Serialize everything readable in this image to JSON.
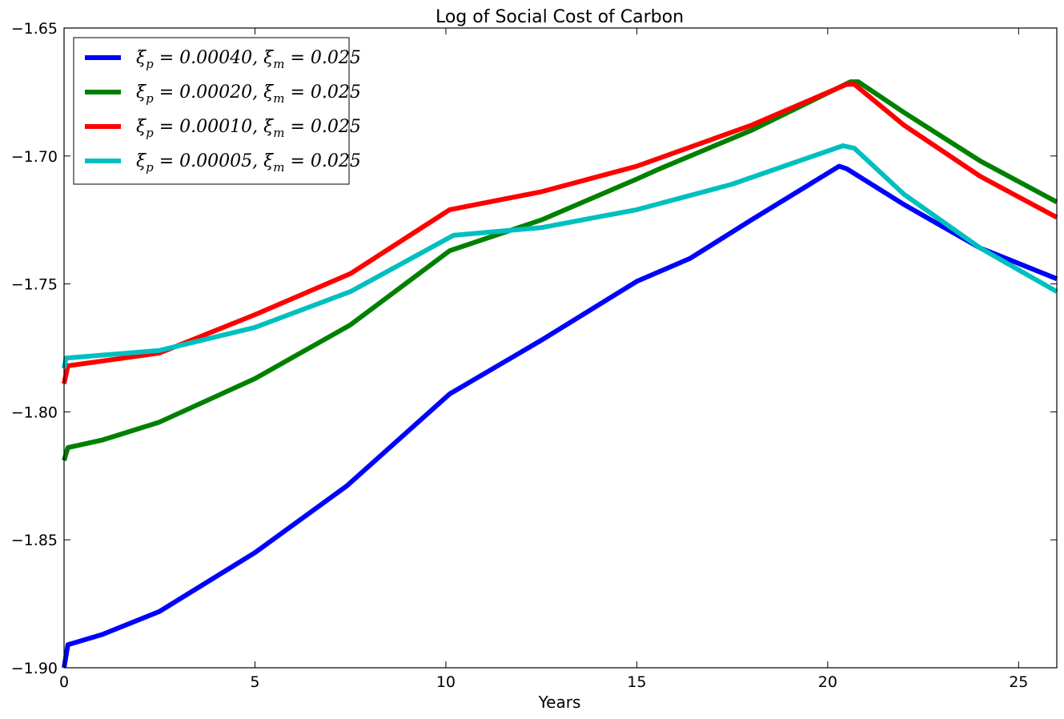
{
  "chart_data": {
    "type": "line",
    "title": "Log of Social Cost of Carbon",
    "xlabel": "Years",
    "ylabel": "",
    "xlim": [
      0,
      26
    ],
    "ylim": [
      -1.9,
      -1.65
    ],
    "xticks": [
      0,
      5,
      10,
      15,
      20,
      25
    ],
    "xtick_labels": [
      "0",
      "5",
      "10",
      "15",
      "20",
      "25"
    ],
    "yticks": [
      -1.9,
      -1.85,
      -1.8,
      -1.75,
      -1.7,
      -1.65
    ],
    "ytick_labels": [
      "−1.90",
      "−1.85",
      "−1.80",
      "−1.75",
      "−1.70",
      "−1.65"
    ],
    "grid": false,
    "legend_position": "top-left",
    "series": [
      {
        "name": "ξₚ = 0.00040, ξₘ = 0.025",
        "color": "#0000ff",
        "x": [
          0,
          0.1,
          1,
          2.5,
          5,
          7.4,
          10.1,
          12.5,
          15,
          16.4,
          18,
          20.3,
          20.5,
          22,
          24,
          26
        ],
        "y": [
          -1.9,
          -1.891,
          -1.887,
          -1.878,
          -1.855,
          -1.829,
          -1.793,
          -1.772,
          -1.749,
          -1.74,
          -1.725,
          -1.704,
          -1.705,
          -1.719,
          -1.736,
          -1.748
        ]
      },
      {
        "name": "ξₚ = 0.00020, ξₘ = 0.025",
        "color": "#008000",
        "x": [
          0,
          0.1,
          1,
          2.5,
          5,
          7.5,
          10.1,
          12.5,
          15,
          15.6,
          18,
          20.6,
          20.8,
          22,
          24,
          26
        ],
        "y": [
          -1.819,
          -1.814,
          -1.811,
          -1.804,
          -1.787,
          -1.766,
          -1.737,
          -1.725,
          -1.709,
          -1.705,
          -1.69,
          -1.671,
          -1.671,
          -1.683,
          -1.702,
          -1.718
        ]
      },
      {
        "name": "ξₚ = 0.00010, ξₘ = 0.025",
        "color": "#ff0000",
        "x": [
          0,
          0.1,
          2.5,
          5,
          7.5,
          10.1,
          12.5,
          15,
          18,
          20.5,
          20.7,
          22,
          24,
          26
        ],
        "y": [
          -1.789,
          -1.782,
          -1.777,
          -1.762,
          -1.746,
          -1.721,
          -1.714,
          -1.704,
          -1.688,
          -1.672,
          -1.672,
          -1.688,
          -1.708,
          -1.724
        ]
      },
      {
        "name": "ξₚ = 0.00005, ξₘ = 0.025",
        "color": "#00bfbf",
        "x": [
          0,
          0.05,
          2.5,
          5,
          7.5,
          10.2,
          12.5,
          15,
          17.5,
          20.4,
          20.7,
          22,
          24,
          26
        ],
        "y": [
          -1.783,
          -1.779,
          -1.776,
          -1.767,
          -1.753,
          -1.731,
          -1.728,
          -1.721,
          -1.711,
          -1.696,
          -1.697,
          -1.715,
          -1.736,
          -1.753
        ]
      }
    ]
  },
  "legend": {
    "entries": [
      {
        "prefix": "ξ",
        "sub1": "p",
        "mid": " = 0.00040, ξ",
        "sub2": "m",
        "suffix": " = 0.025"
      },
      {
        "prefix": "ξ",
        "sub1": "p",
        "mid": " = 0.00020, ξ",
        "sub2": "m",
        "suffix": " = 0.025"
      },
      {
        "prefix": "ξ",
        "sub1": "p",
        "mid": " = 0.00010, ξ",
        "sub2": "m",
        "suffix": " = 0.025"
      },
      {
        "prefix": "ξ",
        "sub1": "p",
        "mid": " = 0.00005, ξ",
        "sub2": "m",
        "suffix": " = 0.025"
      }
    ]
  }
}
